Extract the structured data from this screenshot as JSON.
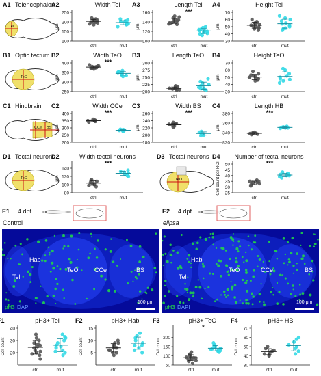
{
  "colors": {
    "ctrl": "#555555",
    "mut": "#33d9e6",
    "brain_fill": "#f2ef9c",
    "brain_region": "#f0e06a",
    "region_line": "#cc1111",
    "micro_bg": "#050a9a",
    "ph3": "#22dd44",
    "dapi": "#3355ff",
    "orient_box": "#e06060"
  },
  "rows": [
    {
      "letter": "A",
      "schematic": {
        "id": "A1",
        "title": "Telencephalon",
        "region_labels": [
          "Tel"
        ]
      },
      "panels": [
        "A2",
        "A3",
        "A4"
      ]
    },
    {
      "letter": "B",
      "schematic": {
        "id": "B1",
        "title": "Optic tectum",
        "region_labels": [
          "TeO"
        ]
      },
      "panels": [
        "B2",
        "B3",
        "B4"
      ]
    },
    {
      "letter": "C",
      "schematic": {
        "id": "C1",
        "title": "Hindbrain",
        "region_labels": [
          "CCe",
          "BS"
        ]
      },
      "panels": [
        "C2",
        "C3",
        "C4"
      ]
    },
    {
      "letter": "D",
      "schematic": {
        "id": "D1",
        "title": "Tectal neurons",
        "region_labels": [
          "TeO"
        ]
      },
      "panels": [
        "D2",
        "D4"
      ],
      "extra_schematic": {
        "id": "D3",
        "title": "Tectal neurons",
        "region_labels": [
          "TeO"
        ]
      }
    }
  ],
  "chart_data": [
    {
      "id": "A2",
      "type": "scatter",
      "title": "Width Tel",
      "ylabel": "μm",
      "ylim": [
        100,
        250
      ],
      "yticks": [
        100,
        150,
        200,
        250
      ],
      "categories": [
        "ctrl",
        "mut"
      ],
      "significance": "",
      "series": [
        {
          "name": "ctrl",
          "values": [
            210,
            205,
            200,
            198,
            212,
            215,
            195,
            190,
            205,
            220,
            200,
            185,
            208
          ]
        },
        {
          "name": "mut",
          "values": [
            200,
            195,
            190,
            205,
            185,
            210,
            198,
            175,
            192,
            202,
            188,
            215
          ]
        }
      ]
    },
    {
      "id": "A3",
      "type": "scatter",
      "title": "Length Tel",
      "ylabel": "μm",
      "ylim": [
        100,
        160
      ],
      "yticks": [
        100,
        120,
        140,
        160
      ],
      "categories": [
        "ctrl",
        "mut"
      ],
      "significance": "***",
      "series": [
        {
          "name": "ctrl",
          "values": [
            145,
            140,
            138,
            150,
            135,
            142,
            148,
            136,
            141,
            139,
            144,
            152,
            137
          ]
        },
        {
          "name": "mut",
          "values": [
            120,
            118,
            125,
            115,
            130,
            122,
            112,
            119,
            124,
            116,
            128,
            121
          ]
        }
      ]
    },
    {
      "id": "A4",
      "type": "scatter",
      "title": "Height Tel",
      "ylabel": "μm",
      "ylim": [
        30,
        70
      ],
      "yticks": [
        30,
        40,
        50,
        60,
        70
      ],
      "categories": [
        "ctrl",
        "mut"
      ],
      "significance": "",
      "series": [
        {
          "name": "ctrl",
          "values": [
            50,
            55,
            48,
            52,
            57,
            45,
            53,
            49,
            60,
            51,
            47,
            54,
            56
          ]
        },
        {
          "name": "mut",
          "values": [
            52,
            58,
            48,
            55,
            62,
            45,
            50,
            60,
            54,
            47,
            65
          ]
        }
      ]
    },
    {
      "id": "B2",
      "type": "scatter",
      "title": "Width TeO",
      "ylabel": "μm",
      "ylim": [
        250,
        400
      ],
      "yticks": [
        250,
        300,
        350,
        400
      ],
      "categories": [
        "ctrl",
        "mut"
      ],
      "significance": "***",
      "series": [
        {
          "name": "ctrl",
          "values": [
            380,
            375,
            385,
            370,
            390,
            378,
            372,
            383,
            368,
            376,
            381
          ]
        },
        {
          "name": "mut",
          "values": [
            350,
            340,
            355,
            330,
            345,
            360,
            338,
            348,
            335,
            352
          ]
        }
      ]
    },
    {
      "id": "B3",
      "type": "scatter",
      "title": "Length TeO",
      "ylabel": "μm",
      "ylim": [
        200,
        300
      ],
      "yticks": [
        200,
        225,
        250,
        275,
        300
      ],
      "categories": [
        "ctrl",
        "mut"
      ],
      "significance": "",
      "series": [
        {
          "name": "ctrl",
          "values": [
            210,
            215,
            208,
            220,
            212,
            205,
            218,
            211,
            209,
            214,
            207
          ]
        },
        {
          "name": "mut",
          "values": [
            215,
            225,
            210,
            235,
            205,
            245,
            220,
            212,
            230,
            208
          ]
        }
      ]
    },
    {
      "id": "B4",
      "type": "scatter",
      "title": "Height TeO",
      "ylabel": "μm",
      "ylim": [
        30,
        70
      ],
      "yticks": [
        30,
        40,
        50,
        60,
        70
      ],
      "categories": [
        "ctrl",
        "mut"
      ],
      "significance": "",
      "series": [
        {
          "name": "ctrl",
          "values": [
            48,
            52,
            45,
            55,
            50,
            47,
            58,
            49,
            53,
            46,
            51
          ]
        },
        {
          "name": "mut",
          "values": [
            50,
            60,
            45,
            55,
            42,
            62,
            48,
            52,
            47
          ]
        }
      ]
    },
    {
      "id": "C2",
      "type": "scatter",
      "title": "Width CCe",
      "ylabel": "μm",
      "ylim": [
        200,
        400
      ],
      "yticks": [
        200,
        250,
        300,
        350,
        400
      ],
      "categories": [
        "ctrl",
        "mut"
      ],
      "significance": "***",
      "series": [
        {
          "name": "ctrl",
          "values": [
            350,
            345,
            355,
            340,
            360,
            348,
            352
          ]
        },
        {
          "name": "mut",
          "values": [
            285,
            280,
            290,
            275,
            288,
            282
          ]
        }
      ]
    },
    {
      "id": "C3",
      "type": "scatter",
      "title": "Width BS",
      "ylabel": "μm",
      "ylim": [
        180,
        260
      ],
      "yticks": [
        180,
        200,
        220,
        240,
        260
      ],
      "categories": [
        "ctrl",
        "mut"
      ],
      "significance": "***",
      "series": [
        {
          "name": "ctrl",
          "values": [
            230,
            225,
            235,
            228,
            222,
            232
          ]
        },
        {
          "name": "mut",
          "values": [
            205,
            200,
            210,
            198,
            208
          ]
        }
      ]
    },
    {
      "id": "C4",
      "type": "scatter",
      "title": "Length HB",
      "ylabel": "μm",
      "ylim": [
        320,
        380
      ],
      "yticks": [
        320,
        340,
        360,
        380
      ],
      "categories": [
        "ctrl",
        "mut"
      ],
      "significance": "***",
      "series": [
        {
          "name": "ctrl",
          "values": [
            338,
            340,
            336,
            341,
            339,
            337
          ]
        },
        {
          "name": "mut",
          "values": [
            350,
            352,
            349,
            351,
            353,
            350
          ]
        }
      ]
    },
    {
      "id": "D2",
      "type": "scatter",
      "title": "Width tectal neurons",
      "ylabel": "μm",
      "ylim": [
        80,
        150
      ],
      "yticks": [
        80,
        100,
        120,
        140
      ],
      "categories": [
        "ctrl",
        "mut"
      ],
      "significance": "***",
      "series": [
        {
          "name": "ctrl",
          "values": [
            105,
            100,
            110,
            95,
            108,
            102,
            98,
            112,
            104
          ]
        },
        {
          "name": "mut",
          "values": [
            125,
            130,
            120,
            135,
            128,
            122,
            132
          ]
        }
      ]
    },
    {
      "id": "D4",
      "type": "scatter",
      "title": "Number of tectal neurons",
      "ylabel": "Cell count per ROI",
      "ylim": [
        25,
        50
      ],
      "yticks": [
        25,
        30,
        35,
        40,
        45,
        50
      ],
      "categories": [
        "ctrl",
        "mut"
      ],
      "significance": "***",
      "series": [
        {
          "name": "ctrl",
          "values": [
            34,
            33,
            35,
            32,
            36,
            34,
            31,
            35,
            33
          ]
        },
        {
          "name": "mut",
          "values": [
            40,
            42,
            39,
            41,
            38,
            43,
            40,
            41
          ]
        }
      ]
    },
    {
      "id": "F1",
      "type": "scatter",
      "title": "pH3+ Tel",
      "ylabel": "Cell count",
      "ylim": [
        10,
        40
      ],
      "yticks": [
        20,
        30,
        40
      ],
      "categories": [
        "ctrl",
        "mut"
      ],
      "significance": "",
      "series": [
        {
          "name": "ctrl",
          "values": [
            25,
            20,
            30,
            18,
            35,
            22,
            28,
            15,
            24,
            32,
            19,
            26,
            21,
            27
          ]
        },
        {
          "name": "mut",
          "values": [
            25,
            30,
            20,
            35,
            22,
            28,
            18,
            32,
            24,
            26,
            21,
            33
          ]
        }
      ]
    },
    {
      "id": "F2",
      "type": "scatter",
      "title": "pH3+ Hab",
      "ylabel": "Cell count",
      "ylim": [
        0,
        15
      ],
      "yticks": [
        5,
        10,
        15
      ],
      "categories": [
        "ctrl",
        "mut"
      ],
      "significance": "",
      "series": [
        {
          "name": "ctrl",
          "values": [
            7,
            5,
            9,
            6,
            8,
            4,
            10,
            7,
            6,
            8,
            5,
            9,
            7
          ]
        },
        {
          "name": "mut",
          "values": [
            8,
            10,
            6,
            12,
            7,
            9,
            5,
            11,
            8,
            13
          ]
        }
      ]
    },
    {
      "id": "F3",
      "type": "scatter",
      "title": "pH3+ TeO",
      "ylabel": "Cell count",
      "ylim": [
        50,
        250
      ],
      "yticks": [
        50,
        100,
        150,
        200
      ],
      "categories": [
        "ctrl",
        "mut"
      ],
      "significance": "*",
      "series": [
        {
          "name": "ctrl",
          "values": [
            90,
            80,
            110,
            70,
            100,
            85,
            95,
            60,
            75,
            120,
            105,
            88,
            92
          ]
        },
        {
          "name": "mut",
          "values": [
            140,
            130,
            150,
            120,
            160,
            135,
            145,
            125,
            155,
            138,
            170,
            128
          ]
        }
      ]
    },
    {
      "id": "F4",
      "type": "scatter",
      "title": "pH3+ HB",
      "ylabel": "Cell count",
      "ylim": [
        30,
        70
      ],
      "yticks": [
        30,
        40,
        50,
        60,
        70
      ],
      "categories": [
        "ctrl",
        "mut"
      ],
      "significance": "",
      "series": [
        {
          "name": "ctrl",
          "values": [
            45,
            42,
            48,
            40,
            50,
            44,
            46,
            41
          ]
        },
        {
          "name": "mut",
          "values": [
            50,
            55,
            45,
            60,
            48,
            52,
            42,
            58
          ]
        }
      ]
    }
  ],
  "section_e": {
    "left": {
      "id": "E1",
      "stage": "4 dpf",
      "condition": "Control",
      "labels": [
        "Hab",
        "Tel",
        "TeO",
        "CCe",
        "BS"
      ],
      "stain_ph3": "pH3",
      "stain_dapi": "DAPI",
      "scale": "100 μm"
    },
    "right": {
      "id": "E2",
      "stage": "4 dpf",
      "condition": "elipsa",
      "labels": [
        "Hab",
        "Tel",
        "TeO",
        "CCe",
        "BS"
      ],
      "stain_ph3": "pH3",
      "stain_dapi": "DAPI",
      "scale": "100 μm"
    }
  },
  "row_letters": {
    "F": "F"
  }
}
